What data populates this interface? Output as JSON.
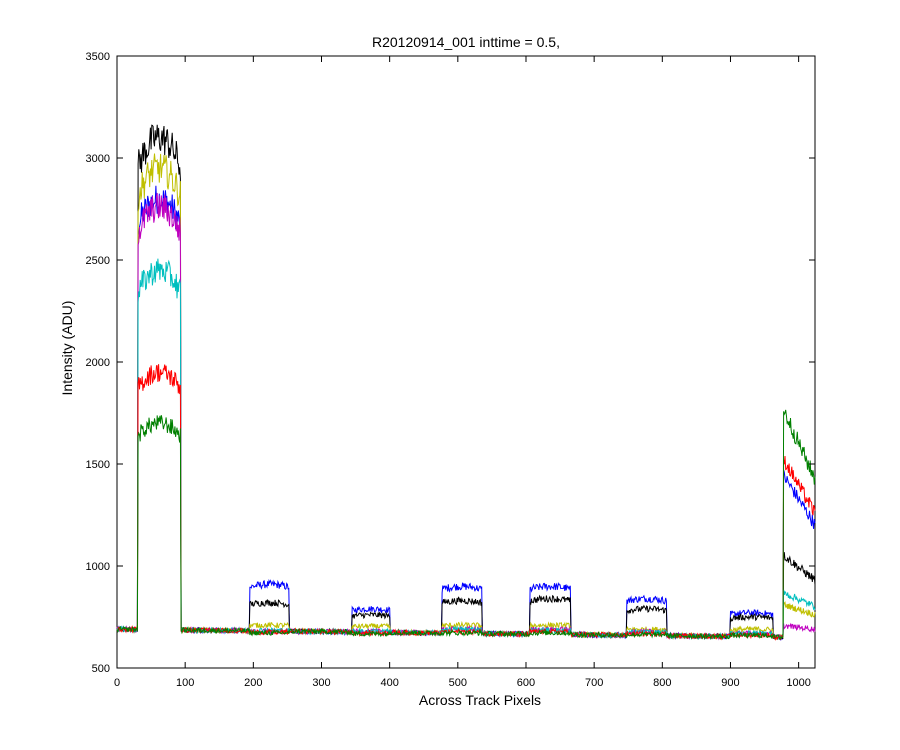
{
  "chart_data": {
    "type": "line",
    "title": "R20120914_001 inttime = 0.5,",
    "xlabel": "Across Track Pixels",
    "ylabel": "Intensity (ADU)",
    "xlim": [
      0,
      1024
    ],
    "ylim": [
      500,
      3500
    ],
    "xticks": [
      0,
      100,
      200,
      300,
      400,
      500,
      600,
      700,
      800,
      900,
      1000
    ],
    "yticks": [
      500,
      1000,
      1500,
      2000,
      2500,
      3000,
      3500
    ],
    "grid": false,
    "legend": "none",
    "series_profile": {
      "baseline_start": 690,
      "baseline_end": 650,
      "noise": 12,
      "block_edges": [
        {
          "name": "block1",
          "start": 31,
          "end": 93
        },
        {
          "name": "block2",
          "start": 195,
          "end": 252
        },
        {
          "name": "block3",
          "start": 345,
          "end": 400
        },
        {
          "name": "block4",
          "start": 477,
          "end": 535
        },
        {
          "name": "block5",
          "start": 606,
          "end": 665
        },
        {
          "name": "block6",
          "start": 748,
          "end": 806
        },
        {
          "name": "block7",
          "start": 900,
          "end": 962
        },
        {
          "name": "block8",
          "start": 978,
          "end": 1024
        }
      ]
    },
    "series": [
      {
        "color": "#0000ff",
        "levels": [
          2800,
          910,
          790,
          900,
          900,
          840,
          770,
          1340
        ]
      },
      {
        "color": "#000000",
        "levels": [
          3100,
          820,
          760,
          830,
          840,
          790,
          750,
          1000
        ]
      },
      {
        "color": "#bfbf00",
        "levels": [
          2950,
          710,
          705,
          710,
          710,
          690,
          690,
          790
        ]
      },
      {
        "color": "#bf00bf",
        "levels": [
          2760,
          680,
          680,
          690,
          690,
          680,
          670,
          700
        ]
      },
      {
        "color": "#00bfbf",
        "levels": [
          2450,
          685,
          680,
          690,
          685,
          675,
          670,
          840
        ]
      },
      {
        "color": "#ff0000",
        "levels": [
          1950,
          675,
          672,
          678,
          678,
          668,
          662,
          1410
        ]
      },
      {
        "color": "#008000",
        "levels": [
          1700,
          672,
          668,
          672,
          672,
          664,
          660,
          1620
        ]
      }
    ]
  }
}
